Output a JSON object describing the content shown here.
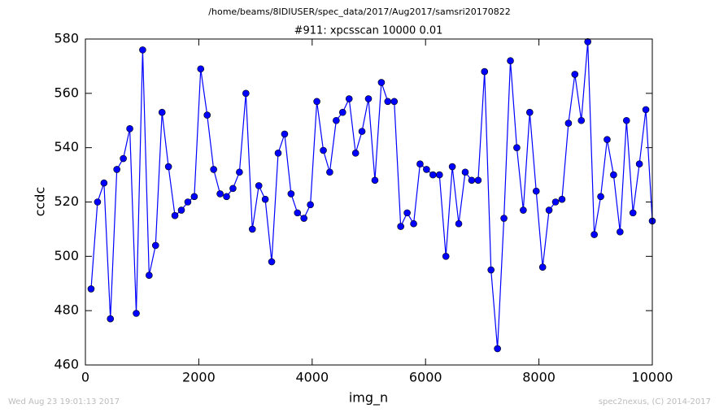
{
  "chart_data": {
    "type": "line",
    "suptitle": "/home/beams/8IDIUSER/spec_data/2017/Aug2017/samsri20170822",
    "title": "#911: xpcsscan 10000 0.01",
    "xlabel": "img_n",
    "ylabel": "ccdc",
    "footer_left": "Wed Aug 23 19:01:13 2017",
    "footer_right": "spec2nexus, (C) 2014-2017",
    "xlim": [
      0,
      10000
    ],
    "xticks": [
      0,
      2000,
      4000,
      6000,
      8000,
      10000
    ],
    "ylim": [
      460,
      580
    ],
    "yticks": [
      460,
      480,
      500,
      520,
      540,
      560,
      580
    ],
    "x": [
      100,
      214,
      328,
      441,
      555,
      669,
      783,
      897,
      1010,
      1124,
      1238,
      1352,
      1465,
      1579,
      1693,
      1807,
      1921,
      2034,
      2148,
      2262,
      2376,
      2490,
      2603,
      2717,
      2831,
      2945,
      3059,
      3172,
      3286,
      3400,
      3514,
      3628,
      3741,
      3855,
      3969,
      4083,
      4197,
      4310,
      4424,
      4538,
      4652,
      4766,
      4879,
      4993,
      5107,
      5221,
      5334,
      5448,
      5562,
      5676,
      5790,
      5903,
      6017,
      6131,
      6245,
      6359,
      6472,
      6586,
      6700,
      6814,
      6928,
      7041,
      7155,
      7269,
      7383,
      7497,
      7610,
      7724,
      7838,
      7952,
      8066,
      8179,
      8293,
      8407,
      8521,
      8634,
      8748,
      8862,
      8976,
      9090,
      9203,
      9317,
      9431,
      9545,
      9659,
      9772,
      9886,
      10000
    ],
    "series": [
      {
        "color": "#0000ff",
        "values": [
          488,
          520,
          527,
          477,
          532,
          536,
          547,
          479,
          576,
          493,
          504,
          553,
          533,
          515,
          517,
          520,
          522,
          569,
          552,
          532,
          523,
          522,
          525,
          531,
          560,
          510,
          526,
          521,
          498,
          538,
          545,
          523,
          516,
          514,
          519,
          557,
          539,
          531,
          550,
          553,
          558,
          538,
          546,
          558,
          528,
          564,
          557,
          557,
          511,
          516,
          512,
          534,
          532,
          530,
          530,
          500,
          533,
          512,
          531,
          528,
          528,
          568,
          495,
          466,
          514,
          572,
          540,
          517,
          553,
          524,
          496,
          517,
          520,
          521,
          549,
          567,
          550,
          579,
          508,
          522,
          543,
          530,
          509,
          550,
          516,
          534,
          554,
          513
        ]
      }
    ]
  }
}
